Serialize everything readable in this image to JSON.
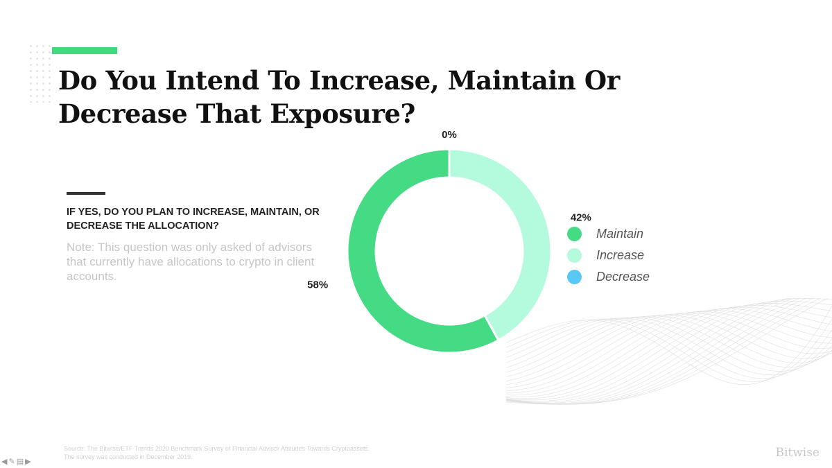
{
  "slide": {
    "title": "Do You Intend To Increase, Maintain Or Decrease That Exposure?",
    "question": "IF YES, DO YOU PLAN TO INCREASE, MAINTAIN, OR DECREASE THE ALLOCATION?",
    "note": "Note: This question was only asked of advisors that currently have allocations to crypto in client accounts.",
    "source_line1": "Source: The Bitwise/ETF Trends 2020 Benchmark Survey of Financial Advisor Attitudes Towards Cryptoassets.",
    "source_line2": "The survey was conducted in December 2019.",
    "brand": "Bitwise"
  },
  "colors": {
    "accent": "#40d97e",
    "maintain": "#45db84",
    "increase": "#b4fadc",
    "decrease": "#5ac8f5"
  },
  "nav_icons": [
    "arrow-left-icon",
    "pen-icon",
    "slides-icon",
    "arrow-right-icon"
  ],
  "chart_data": {
    "type": "pie",
    "style": "donut",
    "title": "Do You Intend To Increase, Maintain Or Decrease That Exposure?",
    "series": [
      {
        "name": "Decrease",
        "value": 0,
        "label": "0%",
        "color": "#5ac8f5"
      },
      {
        "name": "Increase",
        "value": 42,
        "label": "42%",
        "color": "#b4fadc"
      },
      {
        "name": "Maintain",
        "value": 58,
        "label": "58%",
        "color": "#45db84"
      }
    ],
    "legend": [
      {
        "name": "Maintain",
        "color": "#45db84"
      },
      {
        "name": "Increase",
        "color": "#b4fadc"
      },
      {
        "name": "Decrease",
        "color": "#5ac8f5"
      }
    ],
    "legend_position": "right"
  }
}
